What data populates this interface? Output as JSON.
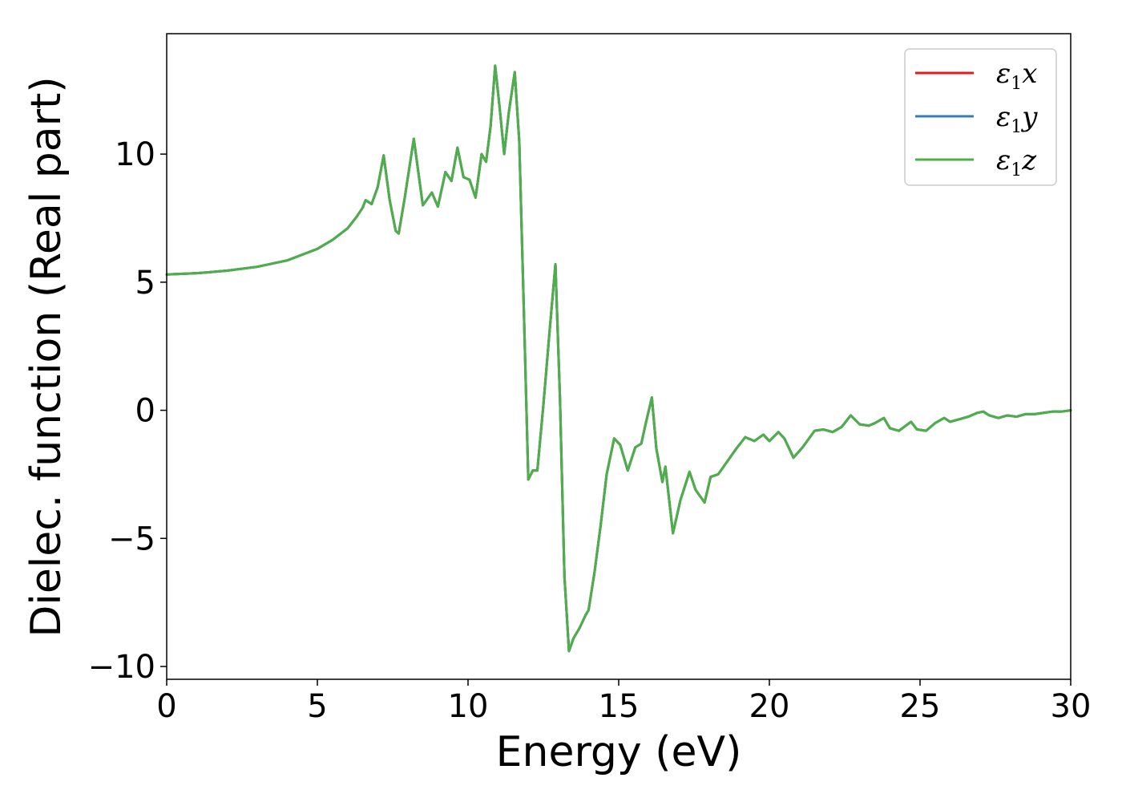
{
  "chart_data": {
    "type": "line",
    "title": "",
    "xlabel": "Energy (eV)",
    "ylabel": "Dielec. function (Real part)",
    "xlim": [
      0,
      30
    ],
    "ylim": [
      -10.5,
      14.7
    ],
    "xticks": [
      0,
      5,
      10,
      15,
      20,
      25,
      30
    ],
    "xtick_labels": [
      "0",
      "5",
      "10",
      "15",
      "20",
      "25",
      "30"
    ],
    "yticks": [
      -10,
      -5,
      0,
      5,
      10
    ],
    "ytick_labels": [
      "−10",
      "−5",
      "0",
      "5",
      "10"
    ],
    "grid": false,
    "legend_position": "top-right",
    "series": [
      {
        "name": "ε1x",
        "color": "#e41a1c",
        "x": [
          0,
          1,
          2,
          3,
          4,
          5,
          5.5,
          6,
          6.3,
          6.5,
          6.6,
          6.8,
          7.0,
          7.2,
          7.4,
          7.6,
          7.7,
          7.9,
          8.2,
          8.5,
          8.8,
          9.0,
          9.25,
          9.45,
          9.65,
          9.85,
          10.05,
          10.25,
          10.45,
          10.6,
          10.75,
          10.9,
          11.05,
          11.2,
          11.35,
          11.55,
          11.7,
          11.85,
          12.0,
          12.15,
          12.3,
          12.5,
          12.7,
          12.9,
          13.05,
          13.2,
          13.35,
          13.5,
          13.7,
          13.9,
          14.0,
          14.2,
          14.4,
          14.6,
          14.85,
          15.05,
          15.3,
          15.55,
          15.75,
          15.9,
          16.1,
          16.25,
          16.45,
          16.55,
          16.8,
          17.05,
          17.35,
          17.55,
          17.85,
          18.05,
          18.3,
          18.6,
          18.9,
          19.2,
          19.5,
          19.8,
          20.0,
          20.3,
          20.5,
          20.8,
          21.1,
          21.5,
          21.8,
          22.1,
          22.4,
          22.7,
          23.0,
          23.3,
          23.5,
          23.8,
          24.0,
          24.3,
          24.7,
          24.9,
          25.2,
          25.5,
          25.8,
          26.0,
          26.3,
          26.6,
          26.9,
          27.1,
          27.3,
          27.6,
          27.9,
          28.2,
          28.5,
          28.8,
          29.1,
          29.4,
          29.7,
          30.0
        ],
        "y": [
          5.3,
          5.35,
          5.45,
          5.6,
          5.85,
          6.3,
          6.65,
          7.1,
          7.55,
          7.9,
          8.2,
          8.05,
          8.7,
          9.95,
          8.2,
          7.0,
          6.9,
          8.3,
          10.6,
          8.0,
          8.5,
          7.95,
          9.3,
          8.95,
          10.25,
          9.1,
          9.0,
          8.3,
          10.0,
          9.7,
          11.1,
          13.45,
          11.8,
          10.0,
          11.6,
          13.2,
          10.5,
          4.0,
          -2.7,
          -2.35,
          -2.35,
          0.2,
          3.0,
          5.7,
          0.5,
          -6.5,
          -9.4,
          -8.9,
          -8.5,
          -8.0,
          -7.8,
          -6.3,
          -4.5,
          -2.5,
          -1.1,
          -1.35,
          -2.35,
          -1.45,
          -1.3,
          -0.5,
          0.5,
          -1.5,
          -2.8,
          -2.2,
          -4.8,
          -3.5,
          -2.4,
          -3.1,
          -3.6,
          -2.6,
          -2.5,
          -2.0,
          -1.5,
          -1.05,
          -1.2,
          -0.95,
          -1.2,
          -0.85,
          -1.1,
          -1.85,
          -1.45,
          -0.8,
          -0.75,
          -0.85,
          -0.65,
          -0.2,
          -0.55,
          -0.6,
          -0.5,
          -0.3,
          -0.7,
          -0.8,
          -0.45,
          -0.75,
          -0.8,
          -0.5,
          -0.3,
          -0.45,
          -0.35,
          -0.25,
          -0.1,
          -0.05,
          -0.2,
          -0.3,
          -0.2,
          -0.25,
          -0.15,
          -0.15,
          -0.1,
          -0.05,
          -0.05,
          0.0
        ]
      },
      {
        "name": "ε1y",
        "color": "#377eb8",
        "x": [
          0,
          1,
          2,
          3,
          4,
          5,
          5.5,
          6,
          6.3,
          6.5,
          6.6,
          6.8,
          7.0,
          7.2,
          7.4,
          7.6,
          7.7,
          7.9,
          8.2,
          8.5,
          8.8,
          9.0,
          9.25,
          9.45,
          9.65,
          9.85,
          10.05,
          10.25,
          10.45,
          10.6,
          10.75,
          10.9,
          11.05,
          11.2,
          11.35,
          11.55,
          11.7,
          11.85,
          12.0,
          12.15,
          12.3,
          12.5,
          12.7,
          12.9,
          13.05,
          13.2,
          13.35,
          13.5,
          13.7,
          13.9,
          14.0,
          14.2,
          14.4,
          14.6,
          14.85,
          15.05,
          15.3,
          15.55,
          15.75,
          15.9,
          16.1,
          16.25,
          16.45,
          16.55,
          16.8,
          17.05,
          17.35,
          17.55,
          17.85,
          18.05,
          18.3,
          18.6,
          18.9,
          19.2,
          19.5,
          19.8,
          20.0,
          20.3,
          20.5,
          20.8,
          21.1,
          21.5,
          21.8,
          22.1,
          22.4,
          22.7,
          23.0,
          23.3,
          23.5,
          23.8,
          24.0,
          24.3,
          24.7,
          24.9,
          25.2,
          25.5,
          25.8,
          26.0,
          26.3,
          26.6,
          26.9,
          27.1,
          27.3,
          27.6,
          27.9,
          28.2,
          28.5,
          28.8,
          29.1,
          29.4,
          29.7,
          30.0
        ],
        "y": [
          5.3,
          5.35,
          5.45,
          5.6,
          5.85,
          6.3,
          6.65,
          7.1,
          7.55,
          7.9,
          8.2,
          8.05,
          8.7,
          9.95,
          8.2,
          7.0,
          6.9,
          8.3,
          10.6,
          8.0,
          8.5,
          7.95,
          9.3,
          8.95,
          10.25,
          9.1,
          9.0,
          8.3,
          10.0,
          9.7,
          11.1,
          13.45,
          11.8,
          10.0,
          11.6,
          13.2,
          10.5,
          4.0,
          -2.7,
          -2.35,
          -2.35,
          0.2,
          3.0,
          5.7,
          0.5,
          -6.5,
          -9.4,
          -8.9,
          -8.5,
          -8.0,
          -7.8,
          -6.3,
          -4.5,
          -2.5,
          -1.1,
          -1.35,
          -2.35,
          -1.45,
          -1.3,
          -0.5,
          0.5,
          -1.5,
          -2.8,
          -2.2,
          -4.8,
          -3.5,
          -2.4,
          -3.1,
          -3.6,
          -2.6,
          -2.5,
          -2.0,
          -1.5,
          -1.05,
          -1.2,
          -0.95,
          -1.2,
          -0.85,
          -1.1,
          -1.85,
          -1.45,
          -0.8,
          -0.75,
          -0.85,
          -0.65,
          -0.2,
          -0.55,
          -0.6,
          -0.5,
          -0.3,
          -0.7,
          -0.8,
          -0.45,
          -0.75,
          -0.8,
          -0.5,
          -0.3,
          -0.45,
          -0.35,
          -0.25,
          -0.1,
          -0.05,
          -0.2,
          -0.3,
          -0.2,
          -0.25,
          -0.15,
          -0.15,
          -0.1,
          -0.05,
          -0.05,
          0.0
        ]
      },
      {
        "name": "ε1z",
        "color": "#4daf4a",
        "x": [
          0,
          1,
          2,
          3,
          4,
          5,
          5.5,
          6,
          6.3,
          6.5,
          6.6,
          6.8,
          7.0,
          7.2,
          7.4,
          7.6,
          7.7,
          7.9,
          8.2,
          8.5,
          8.8,
          9.0,
          9.25,
          9.45,
          9.65,
          9.85,
          10.05,
          10.25,
          10.45,
          10.6,
          10.75,
          10.9,
          11.05,
          11.2,
          11.35,
          11.55,
          11.7,
          11.85,
          12.0,
          12.15,
          12.3,
          12.5,
          12.7,
          12.9,
          13.05,
          13.2,
          13.35,
          13.5,
          13.7,
          13.9,
          14.0,
          14.2,
          14.4,
          14.6,
          14.85,
          15.05,
          15.3,
          15.55,
          15.75,
          15.9,
          16.1,
          16.25,
          16.45,
          16.55,
          16.8,
          17.05,
          17.35,
          17.55,
          17.85,
          18.05,
          18.3,
          18.6,
          18.9,
          19.2,
          19.5,
          19.8,
          20.0,
          20.3,
          20.5,
          20.8,
          21.1,
          21.5,
          21.8,
          22.1,
          22.4,
          22.7,
          23.0,
          23.3,
          23.5,
          23.8,
          24.0,
          24.3,
          24.7,
          24.9,
          25.2,
          25.5,
          25.8,
          26.0,
          26.3,
          26.6,
          26.9,
          27.1,
          27.3,
          27.6,
          27.9,
          28.2,
          28.5,
          28.8,
          29.1,
          29.4,
          29.7,
          30.0
        ],
        "y": [
          5.3,
          5.35,
          5.45,
          5.6,
          5.85,
          6.3,
          6.65,
          7.1,
          7.55,
          7.9,
          8.2,
          8.05,
          8.7,
          9.95,
          8.2,
          7.0,
          6.9,
          8.3,
          10.6,
          8.0,
          8.5,
          7.95,
          9.3,
          8.95,
          10.25,
          9.1,
          9.0,
          8.3,
          10.0,
          9.7,
          11.1,
          13.45,
          11.8,
          10.0,
          11.6,
          13.2,
          10.5,
          4.0,
          -2.7,
          -2.35,
          -2.35,
          0.2,
          3.0,
          5.7,
          0.5,
          -6.5,
          -9.4,
          -8.9,
          -8.5,
          -8.0,
          -7.8,
          -6.3,
          -4.5,
          -2.5,
          -1.1,
          -1.35,
          -2.35,
          -1.45,
          -1.3,
          -0.5,
          0.5,
          -1.5,
          -2.8,
          -2.2,
          -4.8,
          -3.5,
          -2.4,
          -3.1,
          -3.6,
          -2.6,
          -2.5,
          -2.0,
          -1.5,
          -1.05,
          -1.2,
          -0.95,
          -1.2,
          -0.85,
          -1.1,
          -1.85,
          -1.45,
          -0.8,
          -0.75,
          -0.85,
          -0.65,
          -0.2,
          -0.55,
          -0.6,
          -0.5,
          -0.3,
          -0.7,
          -0.8,
          -0.45,
          -0.75,
          -0.8,
          -0.5,
          -0.3,
          -0.45,
          -0.35,
          -0.25,
          -0.1,
          -0.05,
          -0.2,
          -0.3,
          -0.2,
          -0.25,
          -0.15,
          -0.15,
          -0.1,
          -0.05,
          -0.05,
          0.0
        ]
      }
    ]
  }
}
